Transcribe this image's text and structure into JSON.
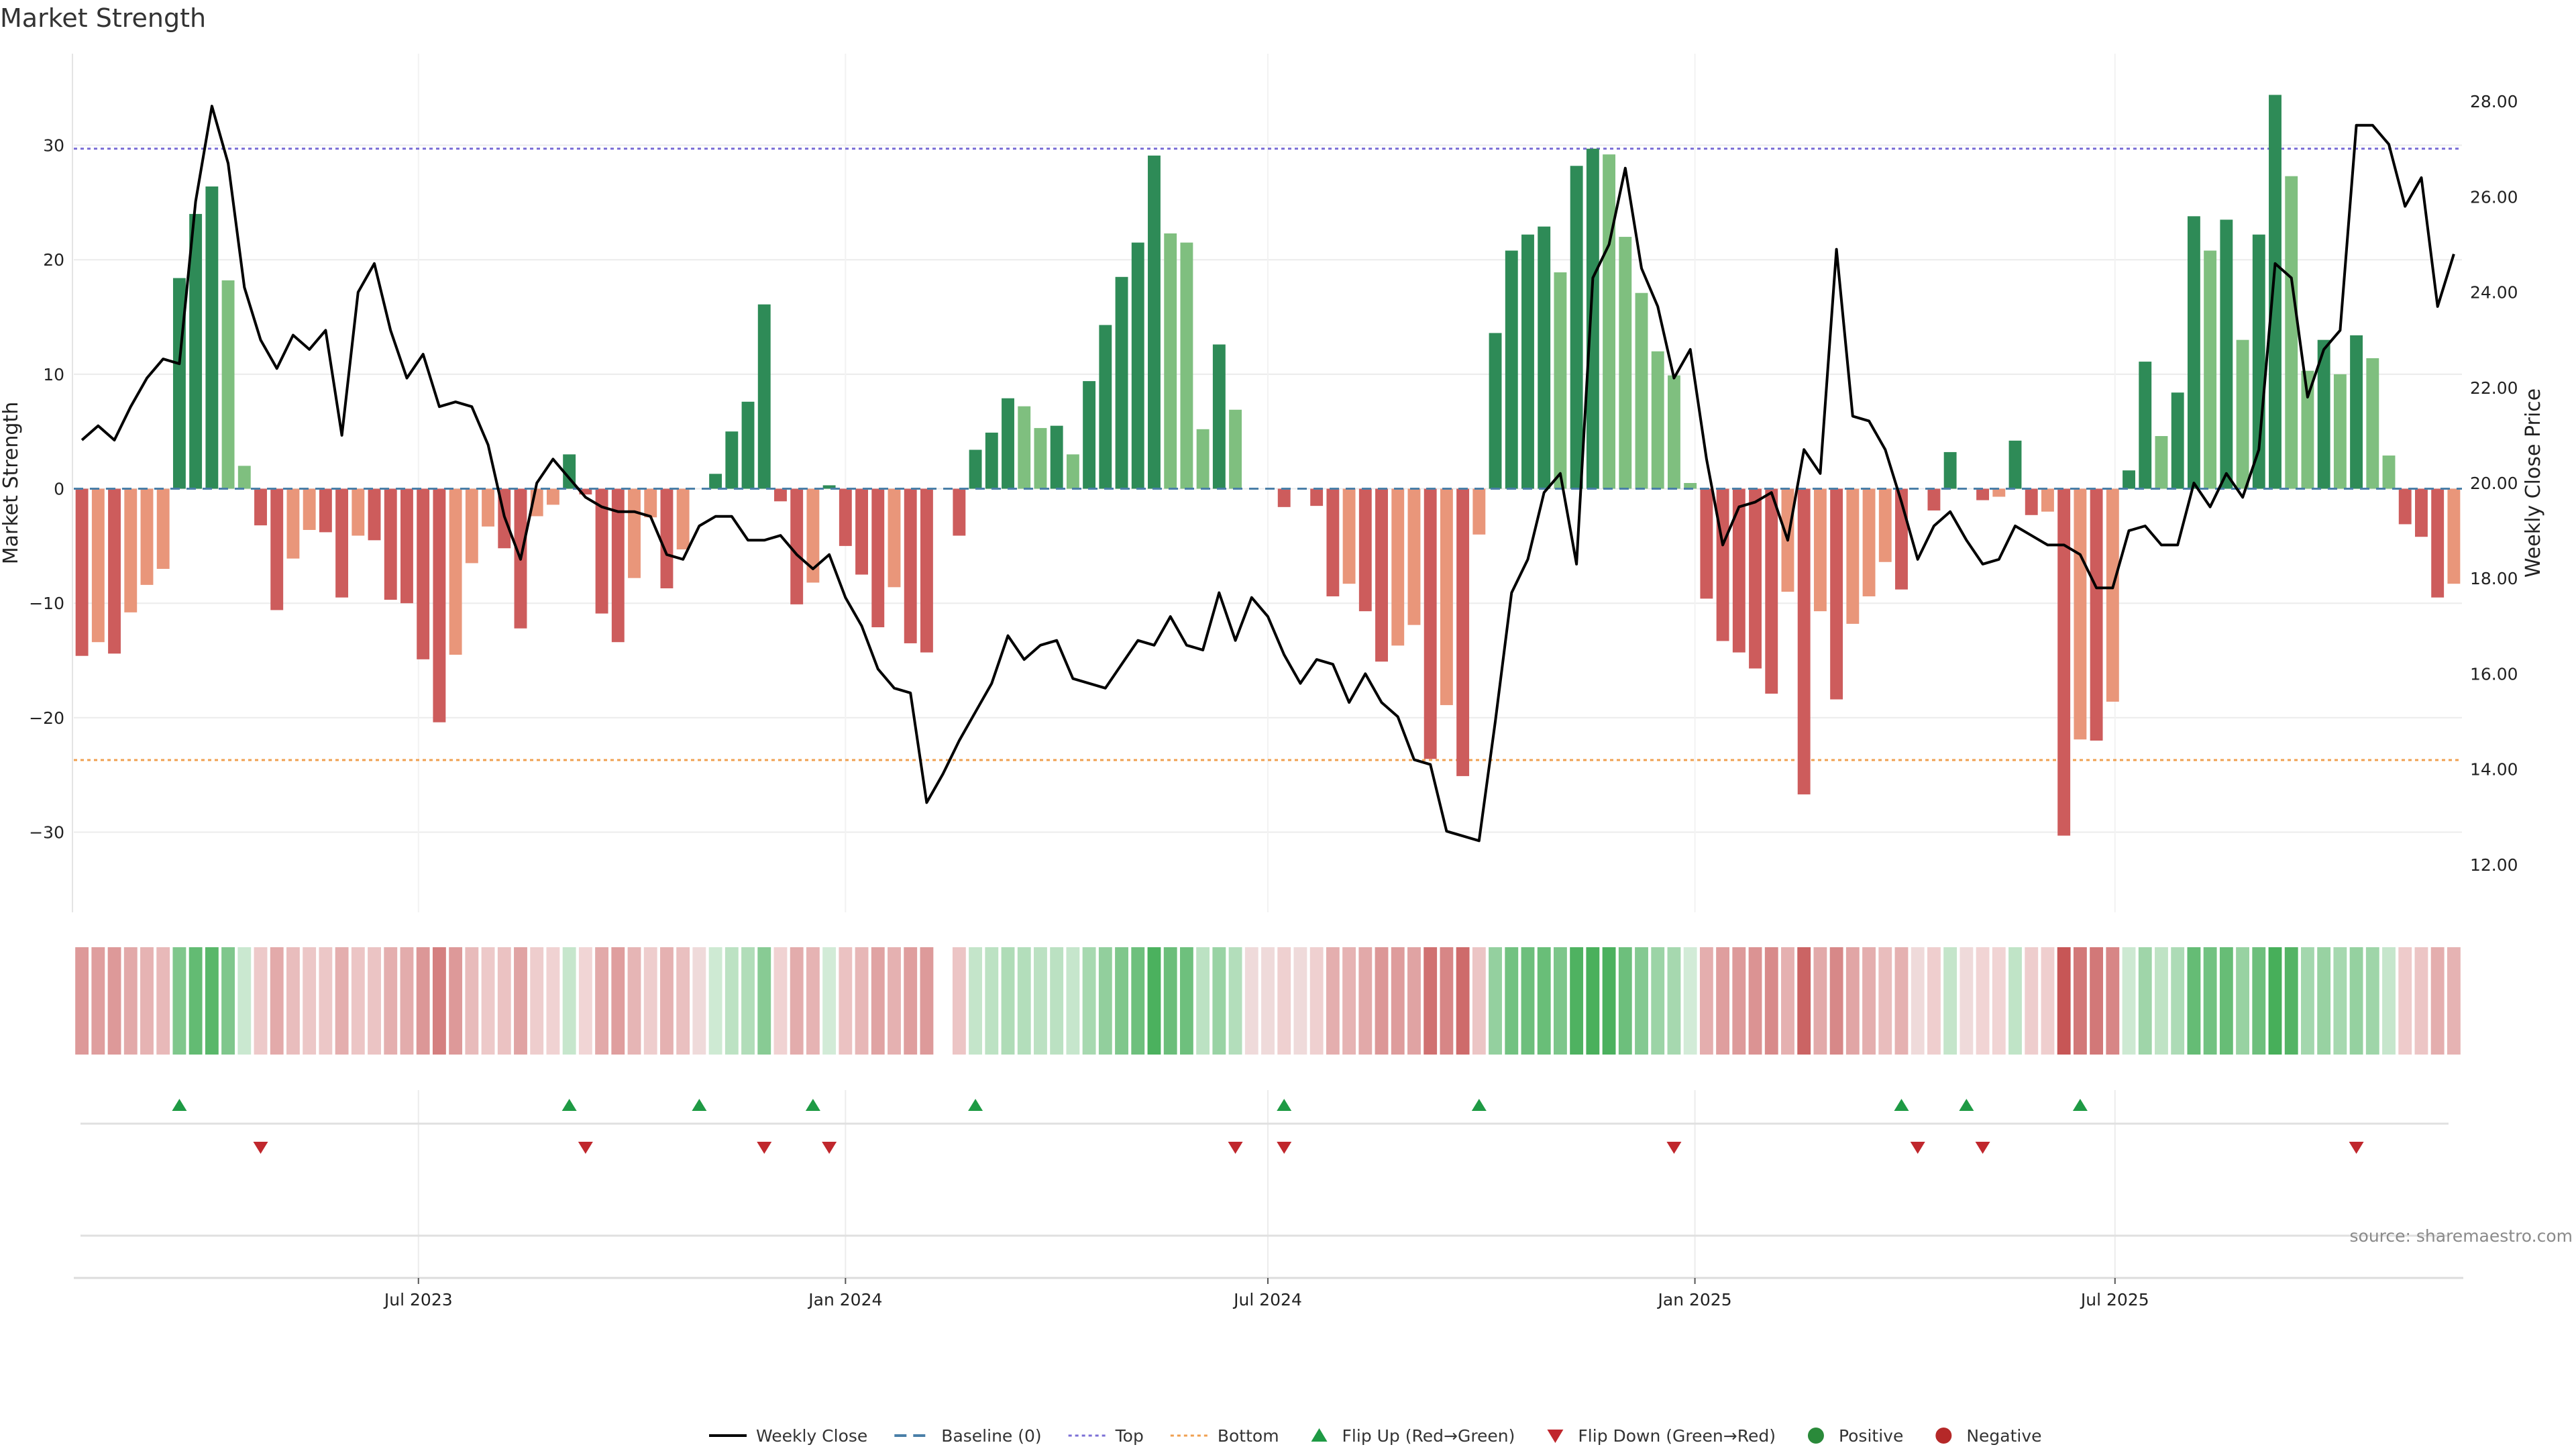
{
  "chart_data": {
    "type": "bar",
    "title": "Market Strength",
    "ylabel": "Market Strength",
    "y2label": "Weekly Close Price",
    "ylim": [
      -37,
      38
    ],
    "y2lim": [
      11.0,
      29.0
    ],
    "yticks": [
      -30,
      -20,
      -10,
      0,
      10,
      20,
      30
    ],
    "y2ticks": [
      "12.00",
      "14.00",
      "16.00",
      "18.00",
      "20.00",
      "22.00",
      "24.00",
      "26.00",
      "28.00"
    ],
    "y2tick_values": [
      12,
      14,
      16,
      18,
      20,
      22,
      24,
      26,
      28
    ],
    "xticks": [
      {
        "label": "Jul 2023",
        "date": "2023-07-01"
      },
      {
        "label": "Jan 2024",
        "date": "2024-01-01"
      },
      {
        "label": "Jul 2024",
        "date": "2024-07-01"
      },
      {
        "label": "Jan 2025",
        "date": "2025-01-01"
      },
      {
        "label": "Jul 2025",
        "date": "2025-07-01"
      }
    ],
    "top_line": 29.7,
    "bottom_line": -23.7,
    "week_dates": [
      "2023-02-06",
      "2023-02-13",
      "2023-02-20",
      "2023-02-27",
      "2023-03-06",
      "2023-03-13",
      "2023-03-20",
      "2023-03-27",
      "2023-04-03",
      "2023-04-10",
      "2023-04-17",
      "2023-04-24",
      "2023-05-01",
      "2023-05-08",
      "2023-05-15",
      "2023-05-22",
      "2023-05-29",
      "2023-06-05",
      "2023-06-12",
      "2023-06-19",
      "2023-06-26",
      "2023-07-03",
      "2023-07-10",
      "2023-07-17",
      "2023-07-24",
      "2023-07-31",
      "2023-08-07",
      "2023-08-14",
      "2023-08-21",
      "2023-08-28",
      "2023-09-04",
      "2023-09-11",
      "2023-09-18",
      "2023-09-25",
      "2023-10-02",
      "2023-10-09",
      "2023-10-16",
      "2023-10-23",
      "2023-10-30",
      "2023-11-06",
      "2023-11-13",
      "2023-11-20",
      "2023-11-27",
      "2023-12-04",
      "2023-12-11",
      "2023-12-18",
      "2023-12-25",
      "2024-01-01",
      "2024-01-08",
      "2024-01-15",
      "2024-01-22",
      "2024-01-29",
      "2024-02-05",
      "2024-02-12",
      "2024-02-19",
      "2024-02-26",
      "2024-03-04",
      "2024-03-11",
      "2024-03-18",
      "2024-03-25",
      "2024-04-01",
      "2024-04-08",
      "2024-04-15",
      "2024-04-22",
      "2024-04-29",
      "2024-05-06",
      "2024-05-13",
      "2024-05-20",
      "2024-05-27",
      "2024-06-03",
      "2024-06-10",
      "2024-06-17",
      "2024-06-24",
      "2024-07-01",
      "2024-07-08",
      "2024-07-15",
      "2024-07-22",
      "2024-07-29",
      "2024-08-05",
      "2024-08-12",
      "2024-08-19",
      "2024-08-26",
      "2024-09-02",
      "2024-09-09",
      "2024-09-16",
      "2024-09-23",
      "2024-09-30",
      "2024-10-07",
      "2024-10-14",
      "2024-10-21",
      "2024-10-28",
      "2024-11-04",
      "2024-11-11",
      "2024-11-18",
      "2024-11-25",
      "2024-12-02",
      "2024-12-09",
      "2024-12-16",
      "2024-12-23",
      "2024-12-30",
      "2025-01-06",
      "2025-01-13",
      "2025-01-20",
      "2025-01-27",
      "2025-02-03",
      "2025-02-10",
      "2025-02-17",
      "2025-02-24",
      "2025-03-03",
      "2025-03-10",
      "2025-03-17",
      "2025-03-24",
      "2025-03-31",
      "2025-04-07",
      "2025-04-14",
      "2025-04-21",
      "2025-04-28",
      "2025-05-05",
      "2025-05-12",
      "2025-05-19",
      "2025-05-26",
      "2025-06-02",
      "2025-06-09",
      "2025-06-16",
      "2025-06-23",
      "2025-06-30",
      "2025-07-07",
      "2025-07-14",
      "2025-07-21",
      "2025-07-28",
      "2025-08-04",
      "2025-08-11",
      "2025-08-18",
      "2025-08-25",
      "2025-09-01",
      "2025-09-08",
      "2025-09-15",
      "2025-09-22",
      "2025-09-29",
      "2025-10-06",
      "2025-10-13",
      "2025-10-20",
      "2025-10-27",
      "2025-11-03",
      "2025-11-10",
      "2025-11-17",
      "2025-11-24"
    ],
    "strength": [
      -14.6,
      -13.4,
      -14.4,
      -10.8,
      -8.4,
      -7.0,
      18.4,
      24.0,
      26.4,
      18.2,
      2.0,
      -3.2,
      -10.6,
      -6.1,
      -3.6,
      -3.8,
      -9.5,
      -4.1,
      -4.5,
      -9.7,
      -10.0,
      -14.9,
      -20.4,
      -14.5,
      -6.5,
      -3.3,
      -5.2,
      -12.2,
      -2.4,
      -1.4,
      3.0,
      -0.5,
      -10.9,
      -13.4,
      -7.8,
      -2.5,
      -8.7,
      -5.3,
      0.0,
      1.3,
      5.0,
      7.6,
      16.1,
      -1.1,
      -10.1,
      -8.2,
      0.3,
      -5.0,
      -7.5,
      -12.1,
      -8.6,
      -13.5,
      -14.3,
      0.0,
      -4.1,
      3.4,
      4.9,
      7.9,
      7.2,
      5.3,
      5.5,
      3.0,
      9.4,
      14.3,
      18.5,
      21.5,
      29.1,
      22.3,
      21.5,
      5.2,
      12.6,
      6.9,
      0.0,
      0.0,
      -1.6,
      0.0,
      -1.5,
      -9.4,
      -8.3,
      -10.7,
      -15.1,
      -13.7,
      -11.9,
      -23.6,
      -18.9,
      -25.1,
      -4.0,
      13.6,
      20.8,
      22.2,
      22.9,
      18.9,
      28.2,
      29.7,
      29.2,
      22.0,
      17.1,
      12.0,
      9.9,
      0.5,
      -9.6,
      -13.3,
      -14.3,
      -15.7,
      -17.9,
      -9.0,
      -26.7,
      -10.7,
      -18.4,
      -11.8,
      -9.4,
      -6.4,
      -8.8,
      0.0,
      -1.9,
      3.2,
      0.0,
      -1.0,
      -0.7,
      4.2,
      -2.3,
      -2.0,
      -30.3,
      -21.9,
      -22.0,
      -18.6,
      1.6,
      11.1,
      4.6,
      8.4,
      23.8,
      20.8,
      23.5,
      13.0,
      22.2,
      34.4,
      27.3,
      10.3,
      13.0,
      10.0,
      13.4,
      11.4,
      2.9,
      -3.1,
      -4.2,
      -9.5,
      -8.3
    ],
    "weekly_close": [
      20.9,
      21.2,
      20.9,
      21.6,
      22.2,
      22.6,
      22.5,
      25.9,
      27.9,
      26.7,
      24.1,
      23.0,
      22.4,
      23.1,
      22.8,
      23.2,
      21.0,
      24.0,
      24.6,
      23.2,
      22.2,
      22.7,
      21.6,
      21.7,
      21.6,
      20.8,
      19.3,
      18.4,
      20.0,
      20.5,
      20.1,
      19.7,
      19.5,
      19.4,
      19.4,
      19.3,
      18.5,
      18.4,
      19.1,
      19.3,
      19.3,
      18.8,
      18.8,
      18.9,
      18.5,
      18.2,
      18.5,
      17.6,
      17.0,
      16.1,
      15.7,
      15.6,
      13.3,
      13.9,
      14.6,
      15.2,
      15.8,
      16.8,
      16.3,
      16.6,
      16.7,
      15.9,
      15.8,
      15.7,
      16.2,
      16.7,
      16.6,
      17.2,
      16.6,
      16.5,
      17.7,
      16.7,
      17.6,
      17.2,
      16.4,
      15.8,
      16.3,
      16.2,
      15.4,
      16.0,
      15.4,
      15.1,
      14.2,
      14.1,
      12.7,
      12.6,
      12.5,
      15.0,
      17.7,
      18.4,
      19.8,
      20.2,
      18.3,
      24.3,
      25.0,
      26.6,
      24.5,
      23.7,
      22.2,
      22.8,
      20.5,
      18.7,
      19.5,
      19.6,
      19.8,
      18.8,
      20.7,
      20.2,
      24.9,
      21.4,
      21.3,
      20.7,
      19.6,
      18.4,
      19.1,
      19.4,
      18.8,
      18.3,
      18.4,
      19.1,
      18.9,
      18.7,
      18.7,
      18.5,
      17.8,
      17.8,
      19.0,
      19.1,
      18.7,
      18.7,
      20.0,
      19.5,
      20.2,
      19.7,
      20.7,
      24.6,
      24.3,
      21.8,
      22.8,
      23.2,
      27.5,
      27.5,
      27.1,
      25.8,
      26.4,
      23.7,
      24.8
    ],
    "flip_up_idx": [
      6,
      30,
      38,
      45,
      55,
      74,
      86,
      112,
      116,
      123
    ],
    "flip_down_idx": [
      11,
      31,
      42,
      46,
      71,
      74,
      98,
      113,
      117,
      140
    ],
    "status_gaps_idx": [
      53
    ],
    "legend": [
      {
        "label": "Weekly Close",
        "kind": "line-solid",
        "color": "#000000"
      },
      {
        "label": "Baseline (0)",
        "kind": "line-dash",
        "color": "#4a7fa8"
      },
      {
        "label": "Top",
        "kind": "line-dot",
        "color": "#7b6fd6"
      },
      {
        "label": "Bottom",
        "kind": "line-dot",
        "color": "#f0a050"
      },
      {
        "label": "Flip Up (Red→Green)",
        "kind": "triangle-up",
        "color": "#1e9a44"
      },
      {
        "label": "Flip Down (Green→Red)",
        "kind": "triangle-down",
        "color": "#c0272d"
      },
      {
        "label": "Positive",
        "kind": "dot",
        "color": "#2a8a3a"
      },
      {
        "label": "Negative",
        "kind": "dot",
        "color": "#b52828"
      }
    ],
    "legend_placement": "bottom-center",
    "grid": true
  },
  "source_text": "source: sharemaestro.com",
  "colors": {
    "pos_strong": "#2e8b57",
    "pos_weak": "#7fbf7f",
    "neg_strong": "#cd5c5c",
    "neg_weak": "#e9967a",
    "top_line": "#7b6fd6",
    "bottom_line": "#f0a050",
    "baseline": "#4a7fa8",
    "price_line": "#000000"
  }
}
